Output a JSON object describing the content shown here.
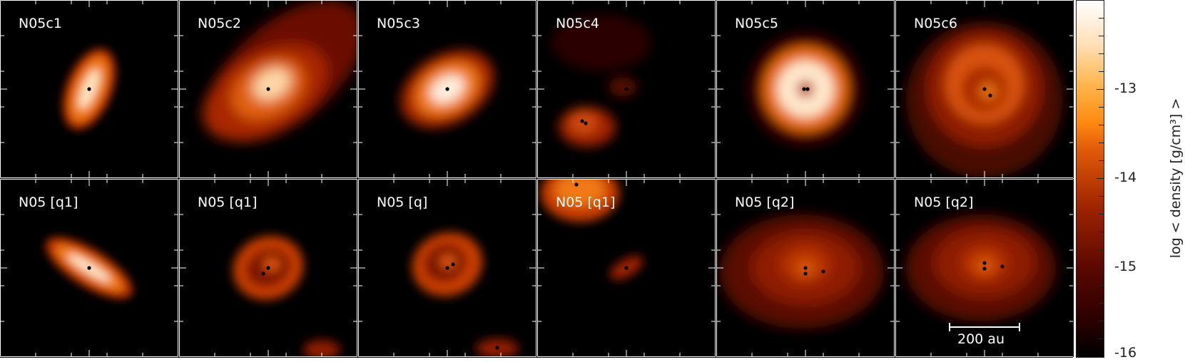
{
  "panels": [
    {
      "label": "N05c1"
    },
    {
      "label": "N05c2"
    },
    {
      "label": "N05c3"
    },
    {
      "label": "N05c4"
    },
    {
      "label": "N05c5"
    },
    {
      "label": "N05c6"
    },
    {
      "label": "N05 [q1]"
    },
    {
      "label": "N05 [q1]"
    },
    {
      "label": "N05 [q]"
    },
    {
      "label": "N05 [q1]"
    },
    {
      "label": "N05 [q2]"
    },
    {
      "label": "N05 [q2]"
    }
  ],
  "scale_bar": {
    "label": "200 au"
  },
  "colorbar": {
    "title": "log < density [g/cm³] >",
    "ticks": [
      "-13",
      "-14",
      "-15",
      "-16"
    ]
  },
  "colors": {
    "background": "#000000",
    "low": "#5a0800",
    "mid": "#e05a08",
    "high": "#ffffff",
    "sink_particle": "#000000"
  }
}
